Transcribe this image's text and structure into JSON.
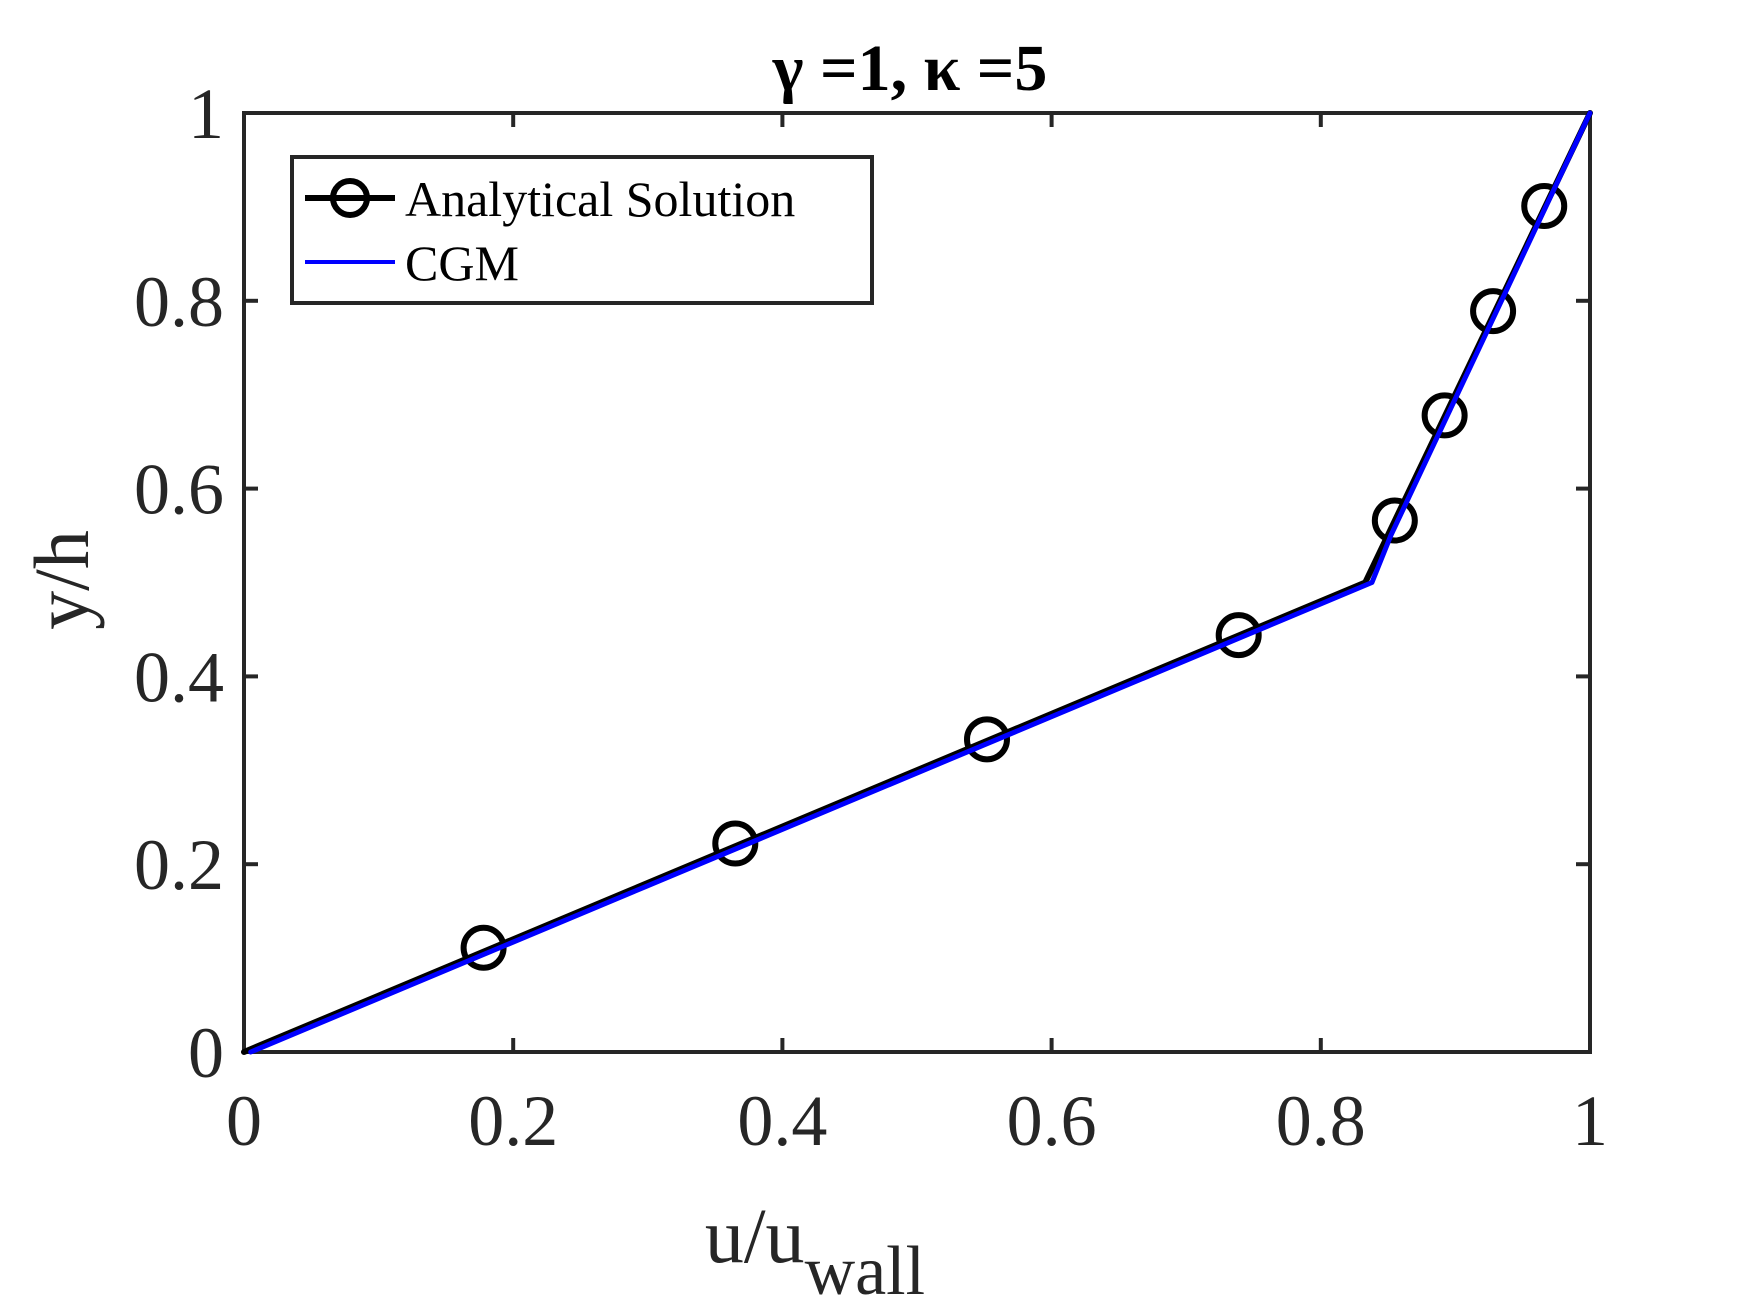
{
  "chart_data": {
    "type": "line",
    "title": "γ =1, κ =5",
    "xlabel": "u/u",
    "xlabel_sub": "wall",
    "ylabel": "y/h",
    "xlim": [
      0,
      1
    ],
    "ylim": [
      0,
      1
    ],
    "xticks": [
      "0",
      "0.2",
      "0.4",
      "0.6",
      "0.8",
      "1"
    ],
    "yticks": [
      "0",
      "0.2",
      "0.4",
      "0.6",
      "0.8",
      "1"
    ],
    "xtick_values": [
      0,
      0.2,
      0.4,
      0.6,
      0.8,
      1
    ],
    "ytick_values": [
      0,
      0.2,
      0.4,
      0.6,
      0.8,
      1
    ],
    "grid": false,
    "box": true,
    "legend_position": "top-left",
    "series": [
      {
        "name": "Analytical Solution",
        "color": "#000000",
        "marker": "circle",
        "line": {
          "x": [
            0,
            0.833,
            1.0
          ],
          "y": [
            0,
            0.5,
            1.0
          ]
        },
        "markers": {
          "x": [
            0.178,
            0.365,
            0.552,
            0.739,
            0.855,
            0.892,
            0.928,
            0.966
          ],
          "y": [
            0.111,
            0.222,
            0.333,
            0.444,
            0.566,
            0.678,
            0.789,
            0.901
          ]
        }
      },
      {
        "name": "CGM",
        "color": "#0000ff",
        "marker": "none",
        "line": {
          "x": [
            0.005,
            0.838,
            0.852,
            1.0
          ],
          "y": [
            0,
            0.5,
            0.55,
            1.0
          ]
        }
      }
    ]
  }
}
